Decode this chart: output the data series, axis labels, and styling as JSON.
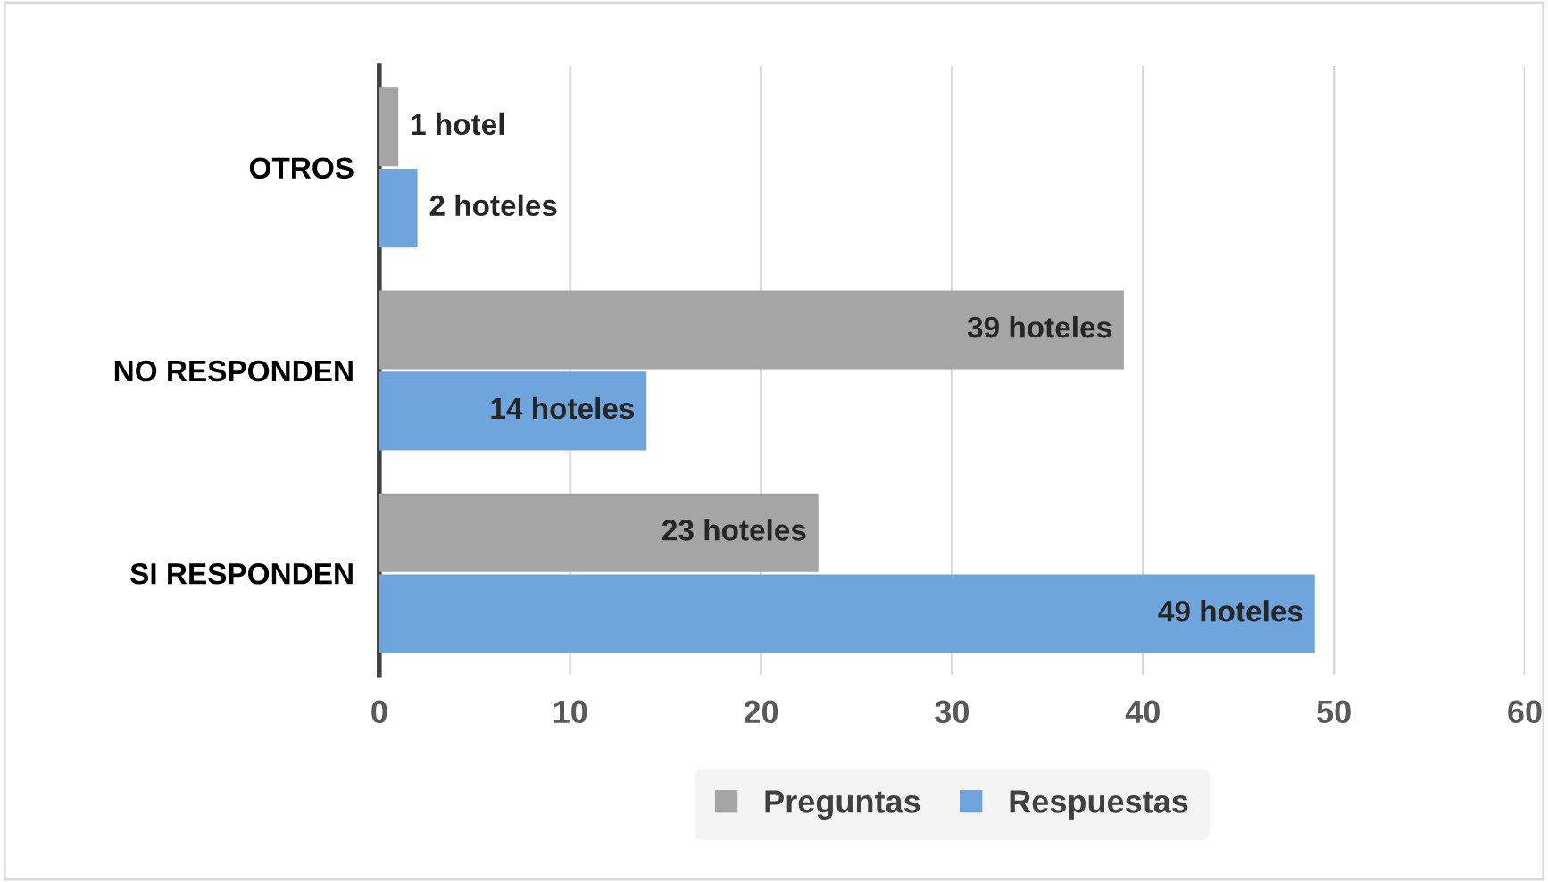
{
  "chart_data": {
    "type": "bar",
    "orientation": "horizontal",
    "categories": [
      "OTROS",
      "NO RESPONDEN",
      "SI RESPONDEN"
    ],
    "series": [
      {
        "name": "Preguntas",
        "color": "#a5a5a5",
        "values": [
          1,
          39,
          23
        ],
        "value_labels": [
          "1 hotel",
          "39 hoteles",
          "23 hoteles"
        ]
      },
      {
        "name": "Respuestas",
        "color": "#6fa5dc",
        "values": [
          2,
          14,
          49
        ],
        "value_labels": [
          "2 hoteles",
          "14 hoteles",
          "49 hoteles"
        ]
      }
    ],
    "xlim": [
      0,
      60
    ],
    "xticks": [
      0,
      10,
      20,
      30,
      40,
      50,
      60
    ],
    "grid": "x",
    "legend": "bottom"
  }
}
